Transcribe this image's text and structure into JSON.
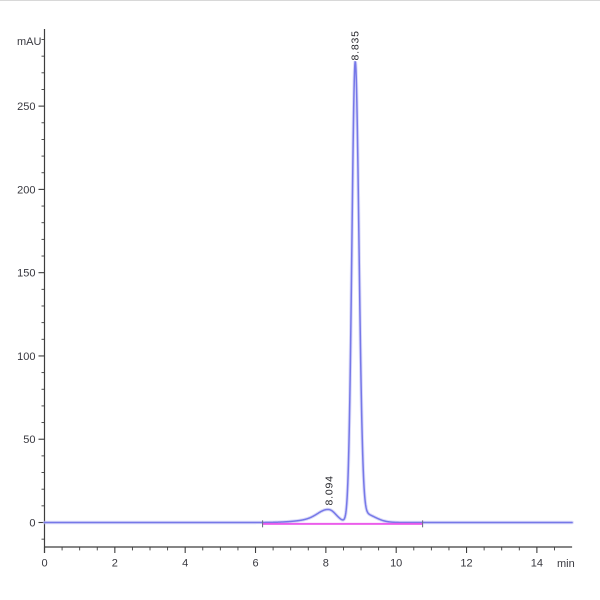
{
  "figure": {
    "y_axis_title": "mAU",
    "x_axis_title": "min"
  },
  "colors": {
    "background": "#ffffff",
    "frame_top": "#d8d8d8",
    "axis": "#3d3d3d",
    "tick_label": "#38383f",
    "trace": "#7678e8",
    "trace_halo": "#c6c6f6",
    "integration": "#e94de9",
    "integration_marker": "#70708a",
    "peak_label": "#26262b"
  },
  "chart_data": {
    "type": "line",
    "title": "",
    "xlabel": "min",
    "ylabel": "mAU",
    "x_range": [
      0,
      15
    ],
    "y_range": [
      -15,
      296
    ],
    "x_major_ticks": [
      0,
      2,
      4,
      6,
      8,
      10,
      12,
      14
    ],
    "x_minor_step": 0.5,
    "y_major_ticks": [
      0,
      50,
      100,
      150,
      200,
      250
    ],
    "y_minor_step": 10,
    "grid": false,
    "legend": null,
    "series": [
      {
        "name": "uv-absorbance-trace",
        "baseline_mau": 0,
        "peaks": [
          {
            "rt_min": 7.8,
            "height_mau": 1.8,
            "sigma_left_min": 0.55,
            "sigma_right_min": 0.35,
            "label": null
          },
          {
            "rt_min": 8.094,
            "height_mau": 6.5,
            "sigma_left_min": 0.3,
            "sigma_right_min": 0.2,
            "label": "8.094"
          },
          {
            "rt_min": 8.835,
            "height_mau": 275,
            "sigma_left_min": 0.095,
            "sigma_right_min": 0.105,
            "label": "8.835"
          },
          {
            "rt_min": 9.06,
            "height_mau": 5.5,
            "sigma_left_min": 0.15,
            "sigma_right_min": 0.32,
            "label": null
          }
        ]
      }
    ],
    "integration_baseline": {
      "start_min": 6.2,
      "end_min": 10.75,
      "level_mau": -0.8
    },
    "peak_annotations": [
      {
        "label": "8.094",
        "rt_min": 8.094,
        "apex_mau": 7.8
      },
      {
        "label": "8.835",
        "rt_min": 8.835,
        "apex_mau": 275
      }
    ]
  }
}
